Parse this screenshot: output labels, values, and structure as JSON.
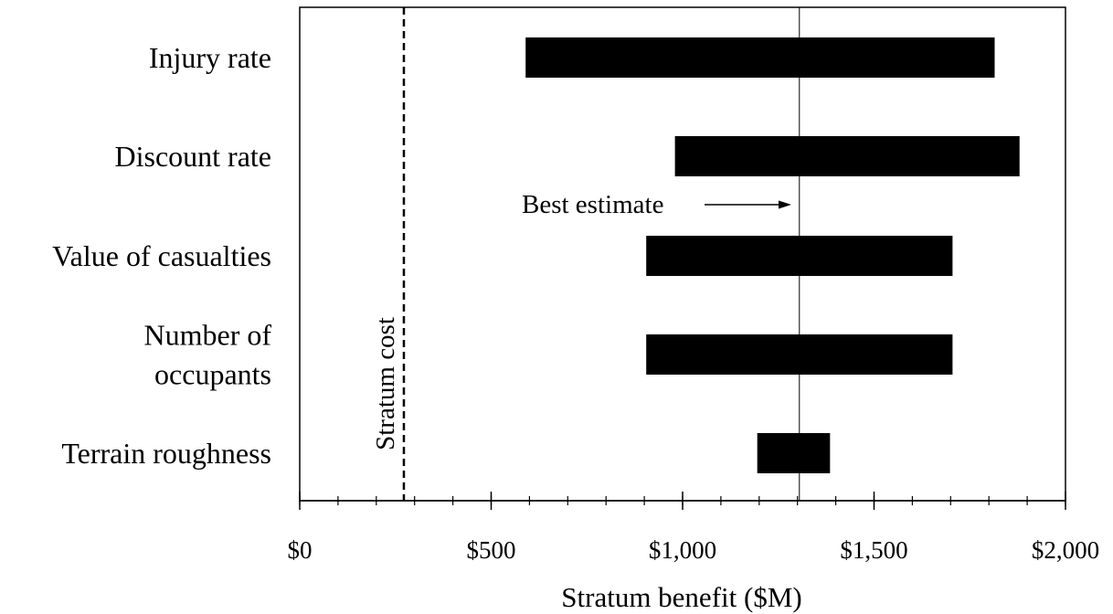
{
  "chart_data": {
    "type": "bar",
    "orientation": "horizontal",
    "title": "",
    "xlabel": "Stratum benefit ($M)",
    "ylabel": "",
    "xlim": [
      0,
      2000
    ],
    "xticks": [
      0,
      500,
      1000,
      1500,
      2000
    ],
    "xtick_labels": [
      "$0",
      "$500",
      "$1,000",
      "$1,500",
      "$2,000"
    ],
    "minor_tick_step": 100,
    "grid": false,
    "legend": "none",
    "bar_color": "#000000",
    "categories": [
      {
        "label_lines": [
          "Injury rate"
        ],
        "low": 590,
        "high": 1815
      },
      {
        "label_lines": [
          "Discount rate"
        ],
        "low": 980,
        "high": 1880
      },
      {
        "label_lines": [
          "Value of casualties"
        ],
        "low": 905,
        "high": 1705
      },
      {
        "label_lines": [
          "Number of",
          "occupants"
        ],
        "low": 905,
        "high": 1705
      },
      {
        "label_lines": [
          "Terrain roughness"
        ],
        "low": 1195,
        "high": 1385
      }
    ],
    "reference_lines": {
      "best_estimate": {
        "value": 1305,
        "label": "Best estimate",
        "style": "solid"
      },
      "stratum_cost": {
        "value": 272,
        "label": "Stratum cost",
        "style": "dashed"
      }
    }
  }
}
